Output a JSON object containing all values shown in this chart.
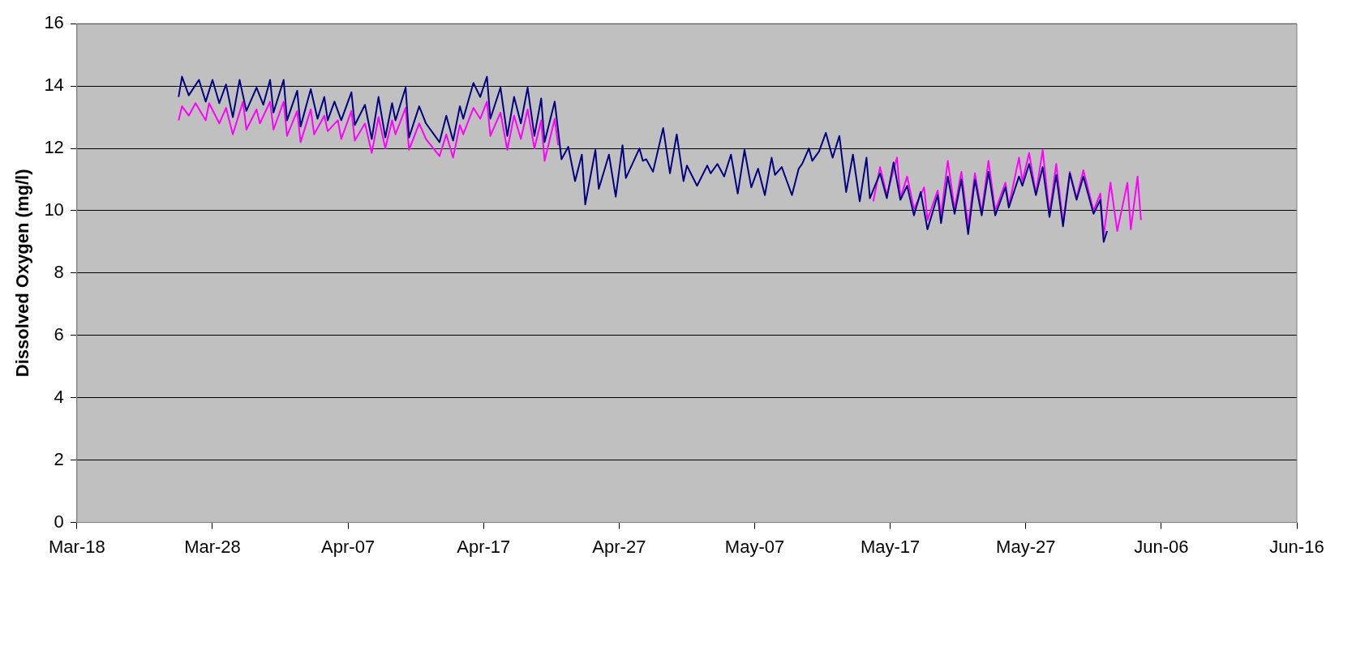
{
  "chart_data": {
    "type": "line",
    "ylabel": "Dissolved Oxygen (mg/l)",
    "xlim": [
      "--03-18",
      "--06-16"
    ],
    "xticks": [
      {
        "value": "--03-18",
        "label": "Mar-18"
      },
      {
        "value": "--03-28",
        "label": "Mar-28"
      },
      {
        "value": "--04-07",
        "label": "Apr-07"
      },
      {
        "value": "--04-17",
        "label": "Apr-17"
      },
      {
        "value": "--04-27",
        "label": "Apr-27"
      },
      {
        "value": "--05-07",
        "label": "May-07"
      },
      {
        "value": "--05-17",
        "label": "May-17"
      },
      {
        "value": "--05-27",
        "label": "May-27"
      },
      {
        "value": "--06-06",
        "label": "Jun-06"
      },
      {
        "value": "--06-16",
        "label": "Jun-16"
      }
    ],
    "ylim": [
      0,
      16
    ],
    "yticks": [
      0,
      2,
      4,
      6,
      8,
      10,
      12,
      14,
      16
    ],
    "grid": "y",
    "legend": false,
    "marker": "none",
    "line_style": "solid",
    "series": [
      {
        "color": "#000080",
        "x": [
          "--03-25T12:00",
          "--03-25T18:00",
          "--03-26T06:00",
          "--03-27T00:00",
          "--03-27T12:00",
          "--03-28T00:00",
          "--03-28T12:00",
          "--03-29T00:00",
          "--03-29T12:00",
          "--03-30T00:00",
          "--03-30T12:00",
          "--03-31T06:00",
          "--03-31T18:00",
          "--04-01T06:00",
          "--04-01T12:00",
          "--04-02T06:00",
          "--04-02T12:00",
          "--04-03T06:00",
          "--04-03T12:00",
          "--04-04T06:00",
          "--04-04T18:00",
          "--04-05T06:00",
          "--04-05T12:00",
          "--04-06T00:00",
          "--04-06T12:00",
          "--04-07T06:00",
          "--04-07T12:00",
          "--04-08T06:00",
          "--04-08T18:00",
          "--04-09T06:00",
          "--04-09T18:00",
          "--04-10T06:00",
          "--04-10T12:00",
          "--04-11T06:00",
          "--04-11T12:00",
          "--04-12T06:00",
          "--04-12T18:00",
          "--04-13T18:00",
          "--04-14T06:00",
          "--04-14T18:00",
          "--04-15T06:00",
          "--04-15T12:00",
          "--04-16T06:00",
          "--04-16T18:00",
          "--04-17T06:00",
          "--04-17T12:00",
          "--04-18T06:00",
          "--04-18T18:00",
          "--04-19T06:00",
          "--04-19T18:00",
          "--04-20T06:00",
          "--04-20T18:00",
          "--04-21T06:00",
          "--04-21T12:00",
          "--04-22T06:00",
          "--04-22T18:00",
          "--04-23T06:00",
          "--04-23T18:00",
          "--04-24T06:00",
          "--04-24T12:00",
          "--04-25T06:00",
          "--04-25T12:00",
          "--04-26T06:00",
          "--04-26T18:00",
          "--04-27T06:00",
          "--04-27T12:00",
          "--04-28T12:00",
          "--04-28T18:00",
          "--04-29T00:00",
          "--04-29T12:00",
          "--04-30T06:00",
          "--04-30T18:00",
          "--05-01T06:00",
          "--05-01T18:00",
          "--05-02T00:00",
          "--05-02T18:00",
          "--05-03T12:00",
          "--05-03T18:00",
          "--05-04T06:00",
          "--05-04T18:00",
          "--05-05T06:00",
          "--05-05T18:00",
          "--05-06T06:00",
          "--05-06T18:00",
          "--05-07T06:00",
          "--05-07T18:00",
          "--05-08T06:00",
          "--05-08T12:00",
          "--05-09T00:00",
          "--05-09T18:00",
          "--05-10T06:00",
          "--05-10T12:00",
          "--05-11T00:00",
          "--05-11T06:00",
          "--05-11T18:00",
          "--05-12T06:00",
          "--05-12T18:00",
          "--05-13T06:00",
          "--05-13T18:00",
          "--05-14T06:00",
          "--05-14T18:00",
          "--05-15T06:00",
          "--05-15T12:00",
          "--05-16T06:00",
          "--05-16T18:00",
          "--05-17T06:00",
          "--05-17T18:00",
          "--05-18T06:00",
          "--05-18T18:00",
          "--05-19T06:00",
          "--05-19T18:00",
          "--05-20T12:00",
          "--05-20T18:00",
          "--05-21T06:00",
          "--05-21T18:00",
          "--05-22T06:00",
          "--05-22T18:00",
          "--05-23T06:00",
          "--05-23T18:00",
          "--05-24T06:00",
          "--05-24T18:00",
          "--05-25T12:00",
          "--05-25T18:00",
          "--05-26T12:00",
          "--05-26T18:00",
          "--05-27T06:00",
          "--05-27T18:00",
          "--05-28T06:00",
          "--05-28T18:00",
          "--05-29T06:00",
          "--05-29T18:00",
          "--05-30T06:00",
          "--05-30T18:00",
          "--05-31T06:00",
          "--06-01T00:00",
          "--06-01T12:00",
          "--06-01T18:00",
          "--06-02T00:00"
        ],
        "values": [
          13.65,
          14.3,
          13.7,
          14.2,
          13.5,
          14.2,
          13.45,
          14.05,
          13.0,
          14.2,
          13.2,
          13.95,
          13.4,
          14.2,
          13.15,
          14.2,
          12.9,
          13.85,
          12.7,
          13.9,
          12.95,
          13.65,
          12.9,
          13.5,
          12.9,
          13.8,
          12.75,
          13.4,
          12.3,
          13.65,
          12.35,
          13.45,
          12.9,
          13.95,
          12.35,
          13.35,
          12.8,
          12.2,
          13.05,
          12.25,
          13.35,
          12.95,
          14.1,
          13.65,
          14.3,
          12.95,
          13.95,
          12.4,
          13.65,
          12.8,
          13.95,
          12.4,
          13.6,
          12.2,
          13.5,
          11.65,
          12.05,
          10.95,
          11.8,
          10.2,
          11.95,
          10.7,
          11.8,
          10.45,
          12.1,
          11.05,
          12.0,
          11.6,
          11.65,
          11.25,
          12.65,
          11.2,
          12.45,
          10.95,
          11.45,
          10.8,
          11.45,
          11.2,
          11.5,
          11.1,
          11.8,
          10.55,
          11.95,
          10.75,
          11.35,
          10.5,
          11.7,
          11.15,
          11.4,
          10.5,
          11.35,
          11.5,
          12.0,
          11.6,
          11.9,
          12.5,
          11.7,
          12.4,
          10.6,
          11.8,
          10.3,
          11.7,
          10.4,
          11.2,
          10.4,
          11.55,
          10.35,
          10.8,
          9.85,
          10.6,
          9.4,
          10.5,
          9.6,
          11.1,
          9.9,
          11.0,
          9.25,
          11.0,
          9.85,
          11.25,
          9.85,
          10.75,
          10.1,
          11.1,
          10.8,
          11.5,
          10.5,
          11.4,
          9.8,
          11.15,
          9.5,
          11.2,
          10.35,
          11.1,
          9.9,
          10.35,
          9.0,
          9.35
        ]
      },
      {
        "color": "#ff00ff",
        "x": [
          "--03-25T12:00",
          "--03-25T18:00",
          "--03-26T06:00",
          "--03-26T18:00",
          "--03-27T12:00",
          "--03-27T18:00",
          "--03-28T12:00",
          "--03-29T00:00",
          "--03-29T12:00",
          "--03-30T06:00",
          "--03-30T12:00",
          "--03-31T06:00",
          "--03-31T12:00",
          "--04-01T06:00",
          "--04-01T12:00",
          "--04-02T06:00",
          "--04-02T12:00",
          "--04-03T06:00",
          "--04-03T12:00",
          "--04-04T06:00",
          "--04-04T12:00",
          "--04-05T06:00",
          "--04-05T12:00",
          "--04-06T06:00",
          "--04-06T12:00",
          "--04-07T06:00",
          "--04-07T12:00",
          "--04-08T06:00",
          "--04-08T18:00",
          "--04-09T06:00",
          "--04-09T18:00",
          "--04-10T06:00",
          "--04-10T12:00",
          "--04-11T06:00",
          "--04-11T12:00",
          "--04-12T06:00",
          "--04-12T18:00",
          "--04-13T18:00",
          "--04-14T06:00",
          "--04-14T18:00",
          "--04-15T06:00",
          "--04-15T12:00",
          "--04-16T06:00",
          "--04-16T18:00",
          "--04-17T06:00",
          "--04-17T12:00",
          "--04-18T06:00",
          "--04-18T18:00",
          "--04-19T06:00",
          "--04-19T18:00",
          "--04-20T06:00",
          "--04-20T18:00",
          "--04-21T06:00",
          "--04-21T12:00",
          "--04-22T06:00",
          "--04-22T12:00",
          "--05-01T00:00",
          "--05-15T18:00",
          "--05-16T06:00",
          "--05-16T18:00",
          "--05-17T12:00",
          "--05-17T18:00",
          "--05-18T06:00",
          "--05-18T18:00",
          "--05-19T12:00",
          "--05-19T18:00",
          "--05-20T12:00",
          "--05-20T18:00",
          "--05-21T06:00",
          "--05-21T18:00",
          "--05-22T06:00",
          "--05-22T18:00",
          "--05-23T06:00",
          "--05-23T18:00",
          "--05-24T06:00",
          "--05-24T18:00",
          "--05-25T12:00",
          "--05-25T18:00",
          "--05-26T12:00",
          "--05-26T18:00",
          "--05-27T06:00",
          "--05-27T18:00",
          "--05-28T06:00",
          "--05-28T18:00",
          "--05-29T06:00",
          "--05-29T18:00",
          "--05-30T06:00",
          "--05-30T18:00",
          "--05-31T06:00",
          "--06-01T00:00",
          "--06-01T12:00",
          "--06-01T18:00",
          "--06-02T06:00",
          "--06-02T18:00",
          "--06-03T12:00",
          "--06-03T18:00",
          "--06-04T06:00",
          "--06-04T12:00"
        ],
        "values": [
          12.9,
          13.35,
          13.05,
          13.45,
          12.9,
          13.45,
          12.8,
          13.3,
          12.45,
          13.5,
          12.6,
          13.25,
          12.8,
          13.5,
          12.6,
          13.5,
          12.4,
          13.2,
          12.2,
          13.25,
          12.45,
          13.05,
          12.55,
          12.9,
          12.3,
          13.2,
          12.25,
          12.8,
          11.85,
          13.0,
          12.0,
          12.9,
          12.45,
          13.3,
          11.95,
          12.8,
          12.3,
          11.75,
          12.45,
          11.7,
          12.75,
          12.45,
          13.3,
          12.95,
          13.5,
          12.4,
          13.15,
          11.95,
          13.05,
          12.3,
          13.25,
          12.0,
          12.9,
          11.6,
          12.95,
          12.1,
          null,
          10.3,
          11.4,
          10.5,
          11.7,
          10.4,
          11.1,
          10.05,
          10.75,
          9.7,
          10.65,
          9.85,
          11.6,
          10.05,
          11.25,
          9.5,
          11.2,
          9.95,
          11.6,
          10.0,
          10.9,
          10.15,
          11.7,
          10.95,
          11.85,
          10.55,
          11.95,
          9.9,
          11.5,
          9.6,
          11.25,
          10.4,
          11.3,
          10.0,
          10.55,
          9.2,
          10.9,
          9.35,
          10.9,
          9.4,
          11.1,
          9.7
        ]
      }
    ]
  }
}
